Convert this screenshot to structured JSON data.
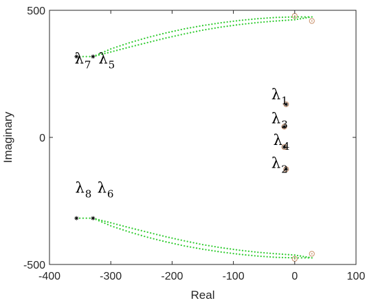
{
  "chart_data": {
    "type": "scatter",
    "title": "",
    "xlabel": "Real",
    "ylabel": "Imaginary",
    "xlim": [
      -400,
      100
    ],
    "ylim": [
      -500,
      500
    ],
    "xticks": [
      -400,
      -300,
      -200,
      -100,
      0,
      100
    ],
    "yticks": [
      -500,
      0,
      500
    ],
    "grid": false,
    "legend": "none",
    "colors": {
      "locus": "#33cc33",
      "start_marker": "#000000",
      "end_marker": "#c8906a",
      "axes": "#262626"
    },
    "series": [
      {
        "kind": "locus",
        "points": [
          [
            -356,
            318
          ],
          [
            -329,
            318
          ],
          [
            -300,
            348
          ],
          [
            -270,
            372
          ],
          [
            -240,
            393
          ],
          [
            -210,
            411
          ],
          [
            -180,
            427
          ],
          [
            -150,
            440
          ],
          [
            -120,
            451
          ],
          [
            -90,
            460
          ],
          [
            -60,
            467
          ],
          [
            -30,
            472
          ],
          [
            0,
            474
          ],
          [
            28,
            474
          ],
          [
            0,
            463
          ],
          [
            -30,
            458
          ],
          [
            -60,
            452
          ],
          [
            -90,
            444
          ],
          [
            -120,
            434
          ],
          [
            -150,
            422
          ],
          [
            -180,
            407
          ],
          [
            -210,
            391
          ],
          [
            -240,
            373
          ],
          [
            -270,
            355
          ],
          [
            -300,
            336
          ],
          [
            -329,
            318
          ]
        ]
      },
      {
        "kind": "locus",
        "points": [
          [
            -356,
            -318
          ],
          [
            -329,
            -318
          ],
          [
            -300,
            -348
          ],
          [
            -270,
            -372
          ],
          [
            -240,
            -393
          ],
          [
            -210,
            -411
          ],
          [
            -180,
            -427
          ],
          [
            -150,
            -440
          ],
          [
            -120,
            -451
          ],
          [
            -90,
            -460
          ],
          [
            -60,
            -467
          ],
          [
            -30,
            -472
          ],
          [
            0,
            -474
          ],
          [
            28,
            -474
          ],
          [
            0,
            -463
          ],
          [
            -30,
            -458
          ],
          [
            -60,
            -452
          ],
          [
            -90,
            -444
          ],
          [
            -120,
            -434
          ],
          [
            -150,
            -422
          ],
          [
            -180,
            -407
          ],
          [
            -210,
            -391
          ],
          [
            -240,
            -373
          ],
          [
            -270,
            -355
          ],
          [
            -300,
            -336
          ],
          [
            -329,
            -318
          ]
        ]
      }
    ],
    "start_points": [
      {
        "x": -356,
        "y": 318
      },
      {
        "x": -329,
        "y": 318
      },
      {
        "x": -356,
        "y": -318
      },
      {
        "x": -329,
        "y": -318
      },
      {
        "x": -14,
        "y": 130
      },
      {
        "x": -17,
        "y": 42
      },
      {
        "x": -17,
        "y": -38
      },
      {
        "x": -14,
        "y": -125
      }
    ],
    "end_points": [
      {
        "x": 0,
        "y": 478
      },
      {
        "x": 28,
        "y": 458
      },
      {
        "x": 0,
        "y": -478
      },
      {
        "x": 28,
        "y": -458
      },
      {
        "x": -14,
        "y": 130
      },
      {
        "x": -17,
        "y": 42
      },
      {
        "x": -17,
        "y": -38
      },
      {
        "x": -14,
        "y": -125
      }
    ],
    "annotations": [
      {
        "name": "lambda-1",
        "base": "λ",
        "sub": "1",
        "x": -38,
        "y": 150
      },
      {
        "name": "lambda-3",
        "base": "λ",
        "sub": "3",
        "x": -38,
        "y": 55
      },
      {
        "name": "lambda-4",
        "base": "λ",
        "sub": "4",
        "x": -35,
        "y": -30
      },
      {
        "name": "lambda-2",
        "base": "λ",
        "sub": "2",
        "x": -38,
        "y": -120
      },
      {
        "name": "lambda-7",
        "base": "λ",
        "sub": "7",
        "x": -359,
        "y": 290
      },
      {
        "name": "lambda-5",
        "base": "λ",
        "sub": "5",
        "x": -320,
        "y": 290
      },
      {
        "name": "lambda-8",
        "base": "λ",
        "sub": "8",
        "x": -358,
        "y": -218
      },
      {
        "name": "lambda-6",
        "base": "λ",
        "sub": "6",
        "x": -322,
        "y": -218
      }
    ]
  }
}
